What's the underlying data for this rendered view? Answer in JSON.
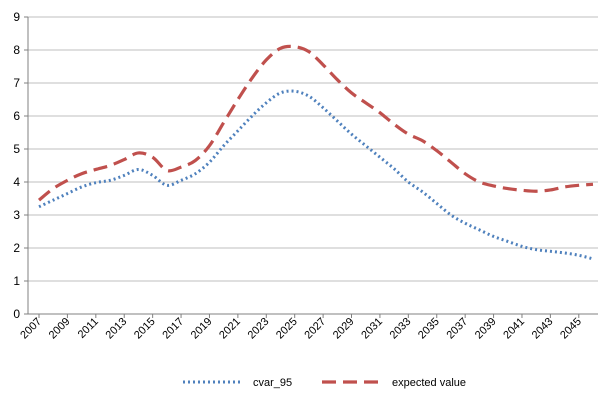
{
  "chart_data": {
    "type": "line",
    "title": "",
    "xlabel": "",
    "ylabel": "",
    "x": [
      2007,
      2008,
      2009,
      2010,
      2011,
      2012,
      2013,
      2014,
      2015,
      2016,
      2017,
      2018,
      2019,
      2020,
      2021,
      2022,
      2023,
      2024,
      2025,
      2026,
      2027,
      2028,
      2029,
      2030,
      2031,
      2032,
      2033,
      2034,
      2035,
      2036,
      2037,
      2038,
      2039,
      2040,
      2041,
      2042,
      2043,
      2044,
      2045,
      2046
    ],
    "xticks": [
      "2007",
      "2009",
      "2011",
      "2013",
      "2015",
      "2017",
      "2019",
      "2021",
      "2023",
      "2025",
      "2027",
      "2029",
      "2031",
      "2033",
      "2035",
      "2037",
      "2039",
      "2041",
      "2043",
      "2045"
    ],
    "ylim": [
      0,
      9
    ],
    "yticks": [
      "0",
      "1",
      "2",
      "3",
      "4",
      "5",
      "6",
      "7",
      "8",
      "9"
    ],
    "grid": "horizontal",
    "legend_position": "bottom",
    "series": [
      {
        "name": "cvar_95",
        "style": "dotted",
        "color": "#4f81bd",
        "values": [
          3.25,
          3.45,
          3.65,
          3.85,
          3.98,
          4.05,
          4.2,
          4.38,
          4.2,
          3.9,
          4.05,
          4.25,
          4.6,
          5.1,
          5.55,
          6.0,
          6.4,
          6.7,
          6.75,
          6.6,
          6.25,
          5.85,
          5.45,
          5.1,
          4.75,
          4.4,
          4.0,
          3.7,
          3.35,
          3.0,
          2.75,
          2.55,
          2.35,
          2.2,
          2.05,
          1.95,
          1.9,
          1.85,
          1.78,
          1.67
        ]
      },
      {
        "name": "expected value",
        "style": "dashed",
        "color": "#c0504d",
        "values": [
          3.45,
          3.8,
          4.05,
          4.25,
          4.38,
          4.5,
          4.68,
          4.88,
          4.75,
          4.35,
          4.45,
          4.65,
          5.1,
          5.8,
          6.5,
          7.15,
          7.7,
          8.05,
          8.1,
          7.95,
          7.55,
          7.1,
          6.7,
          6.4,
          6.1,
          5.75,
          5.45,
          5.25,
          4.95,
          4.6,
          4.25,
          4.0,
          3.88,
          3.8,
          3.75,
          3.72,
          3.76,
          3.85,
          3.9,
          3.93
        ]
      }
    ]
  }
}
